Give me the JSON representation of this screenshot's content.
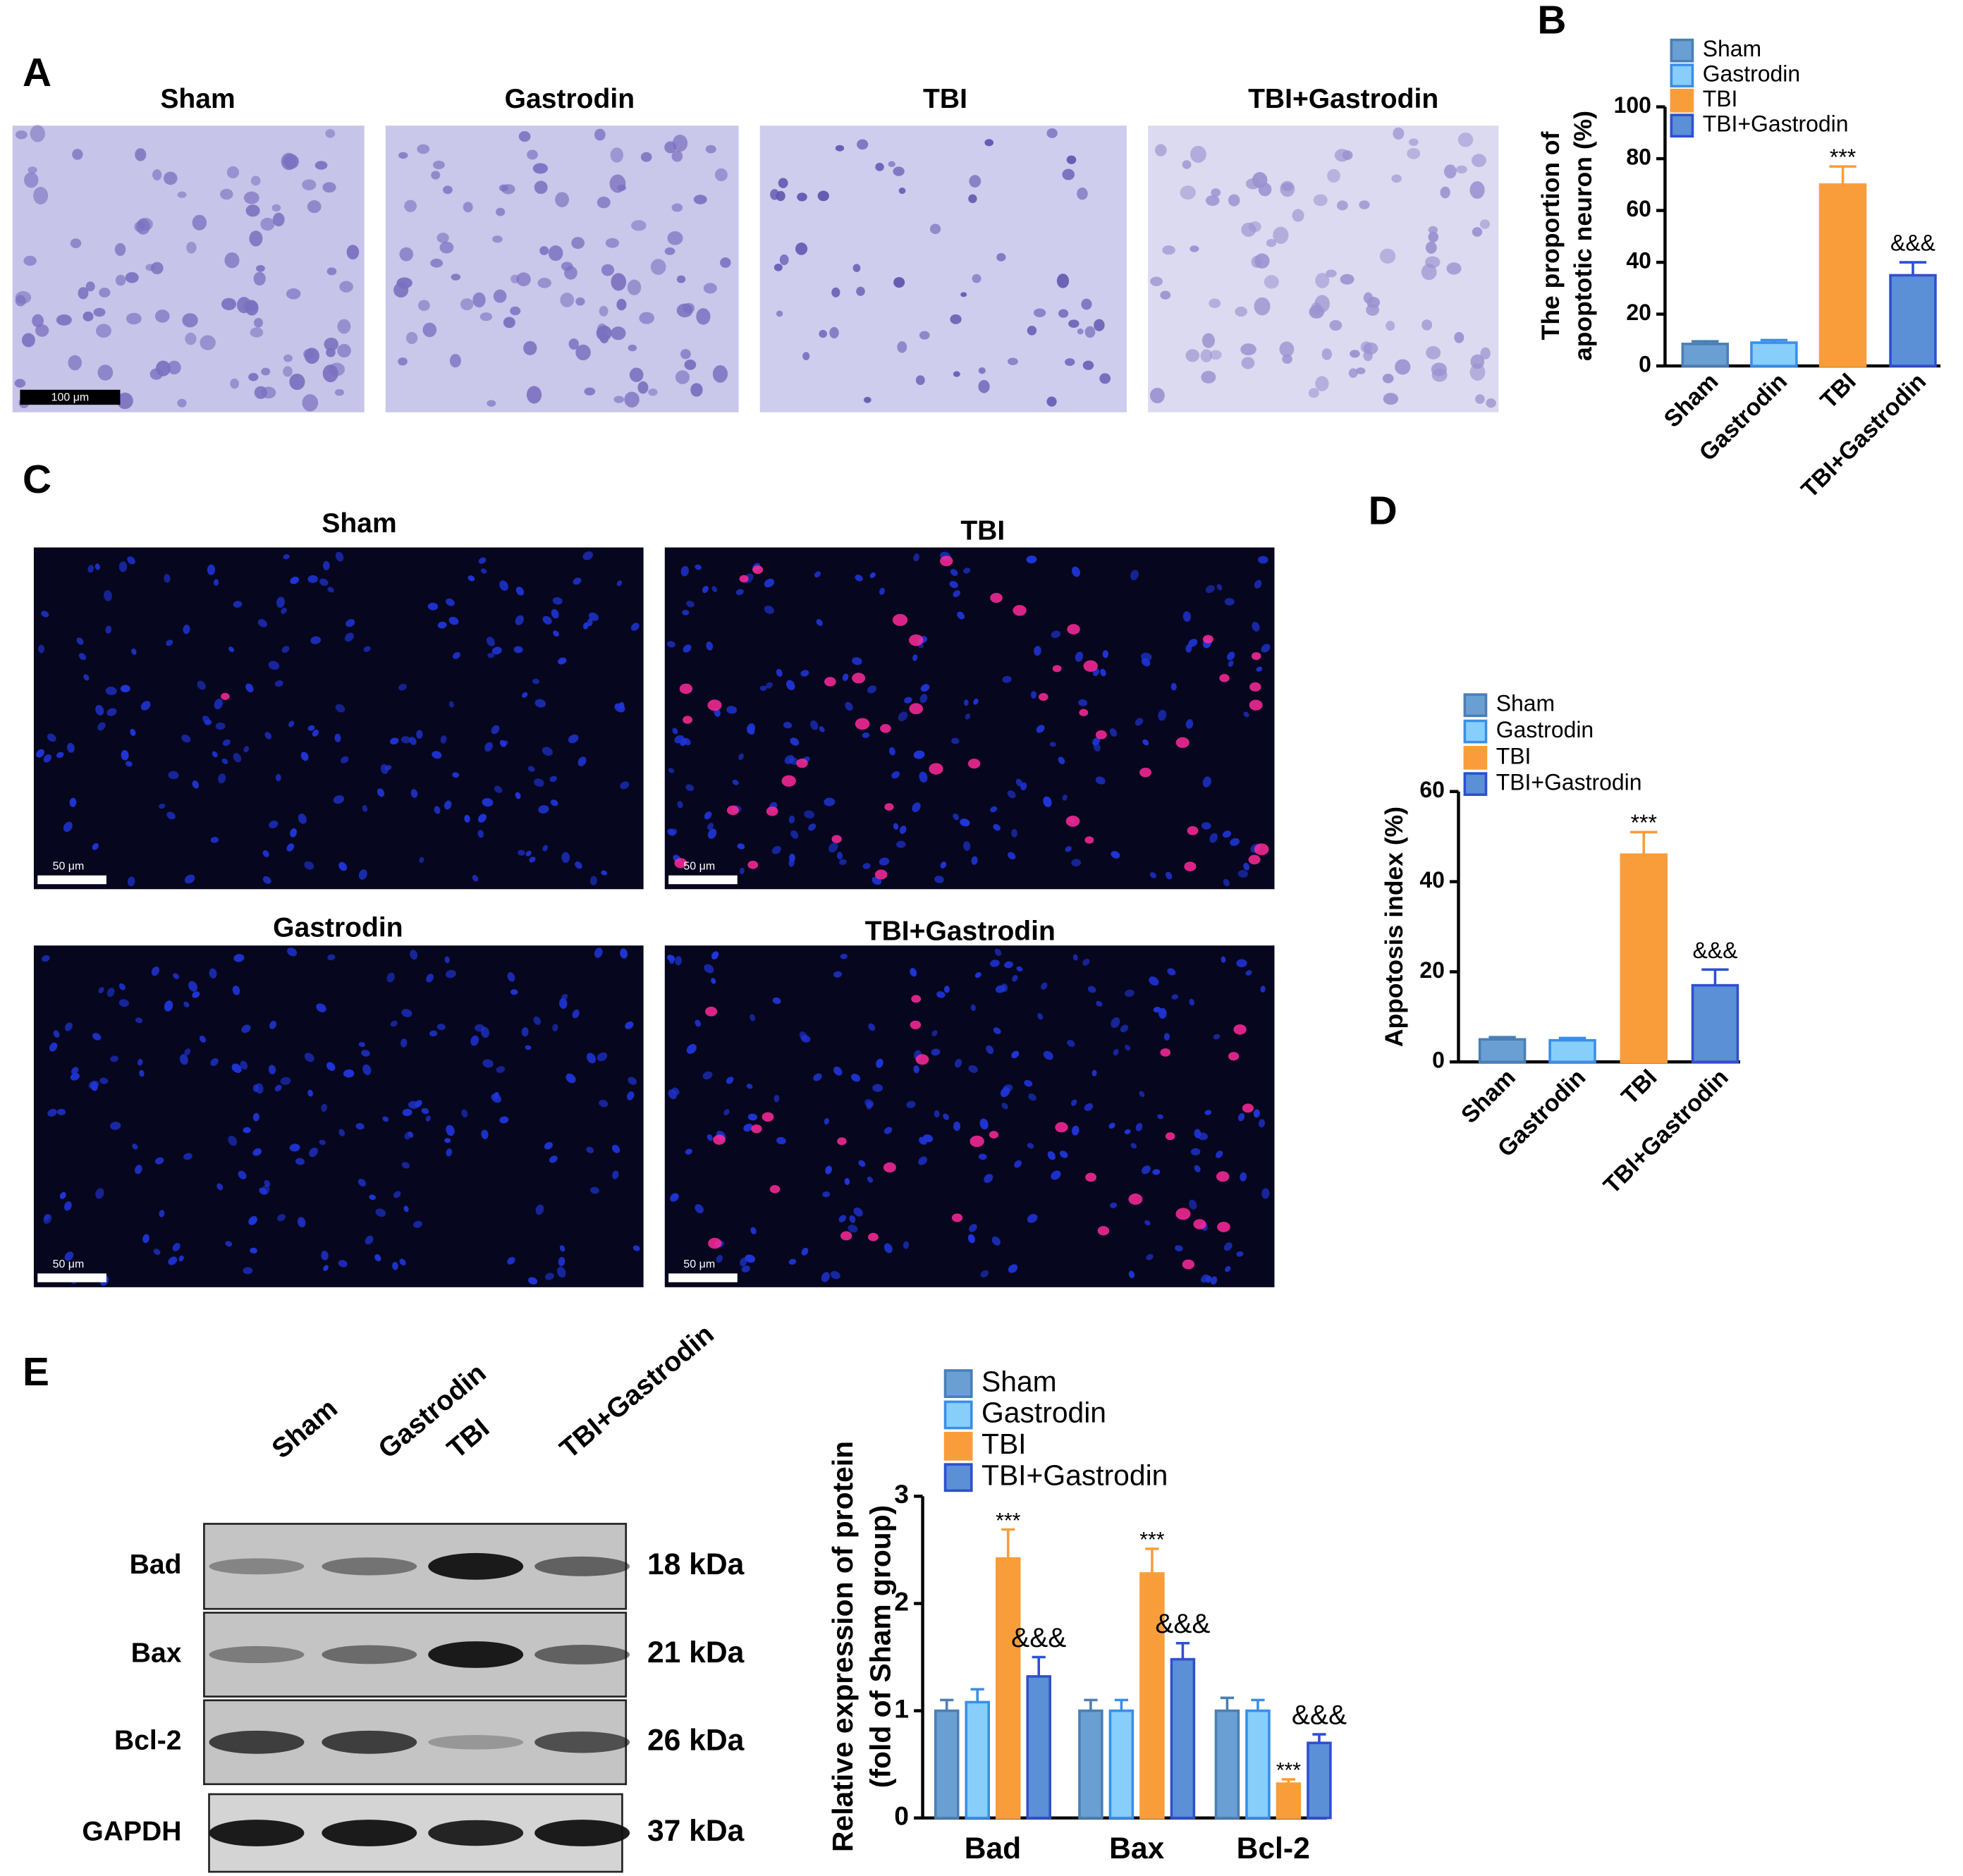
{
  "panel_labels": [
    "A",
    "B",
    "C",
    "D",
    "E"
  ],
  "panel_a": {
    "images": [
      {
        "title": "Sham",
        "scale_bar": "100 μm"
      },
      {
        "title": "Gastrodin"
      },
      {
        "title": "TBI"
      },
      {
        "title": "TBI+Gastrodin"
      }
    ]
  },
  "panel_c": {
    "images": [
      {
        "title": "Sham",
        "scale_bar": "50 μm"
      },
      {
        "title": "TBI",
        "scale_bar": "50 μm"
      },
      {
        "title": "Gastrodin",
        "scale_bar": "50 μm"
      },
      {
        "title": "TBI+Gastrodin",
        "scale_bar": "50 μm"
      }
    ]
  },
  "panel_e_blot": {
    "lanes": [
      "Sham",
      "Gastrodin",
      "TBI",
      "TBI+Gastrodin"
    ],
    "rows": [
      {
        "protein": "Bad",
        "size": "18 kDa"
      },
      {
        "protein": "Bax",
        "size": "21 kDa"
      },
      {
        "protein": "Bcl-2",
        "size": "26 kDa"
      },
      {
        "protein": "GAPDH",
        "size": "37 kDa"
      }
    ]
  },
  "chart_data": [
    {
      "type": "bar",
      "y_label": [
        "The proportion of",
        "apoptotic neuron (%)"
      ],
      "categories": [
        "Sham",
        "Gastrodin",
        "TBI",
        "TBI+Gastrodin"
      ],
      "values": [
        8.5,
        9,
        70,
        35
      ],
      "errors": [
        1,
        1,
        7,
        5
      ],
      "annotations": [
        null,
        null,
        "***",
        "&&&"
      ],
      "colors": [
        "#6a9fd4",
        "#87cefa",
        "#f99d3a",
        "#5b8fd6"
      ],
      "edgecolors": [
        "#4a7fb4",
        "#3a8ee6",
        "#f99d3a",
        "#2e4fd0"
      ],
      "ylim": [
        0,
        100
      ],
      "yticks": [
        0,
        20,
        40,
        60,
        80,
        100
      ]
    },
    {
      "type": "bar",
      "y_label": [
        "Appotosis index (%)"
      ],
      "categories": [
        "Sham",
        "Gastrodin",
        "TBI",
        "TBI+Gastrodin"
      ],
      "values": [
        5,
        4.8,
        46,
        17
      ],
      "errors": [
        0.5,
        0.5,
        5,
        3.5
      ],
      "annotations": [
        null,
        null,
        "***",
        "&&&"
      ],
      "colors": [
        "#6a9fd4",
        "#87cefa",
        "#f99d3a",
        "#5b8fd6"
      ],
      "edgecolors": [
        "#4a7fb4",
        "#3a8ee6",
        "#f99d3a",
        "#2e4fd0"
      ],
      "ylim": [
        0,
        60
      ],
      "yticks": [
        0,
        20,
        40,
        60
      ]
    },
    {
      "type": "grouped_bar",
      "y_label": [
        "Relative expression of protein",
        "(fold of Sham group)"
      ],
      "categories": [
        "Bad",
        "Bax",
        "Bcl-2"
      ],
      "series": [
        {
          "name": "Sham",
          "color": "#6a9fd4",
          "edgecolor": "#4a7fb4",
          "values": [
            1,
            1,
            1
          ],
          "errors": [
            0.1,
            0.1,
            0.12
          ],
          "annotations": [
            null,
            null,
            null
          ]
        },
        {
          "name": "Gastrodin",
          "color": "#87cefa",
          "edgecolor": "#3a8ee6",
          "values": [
            1.08,
            1,
            1
          ],
          "errors": [
            0.12,
            0.1,
            0.1
          ],
          "annotations": [
            null,
            null,
            null
          ]
        },
        {
          "name": "TBI",
          "color": "#f99d3a",
          "edgecolor": "#f99d3a",
          "values": [
            2.42,
            2.28,
            0.32
          ],
          "errors": [
            0.27,
            0.23,
            0.04
          ],
          "annotations": [
            "***",
            "***",
            "***"
          ]
        },
        {
          "name": "TBI+Gastrodin",
          "color": "#5b8fd6",
          "edgecolor": "#2e4fd0",
          "values": [
            1.32,
            1.48,
            0.7
          ],
          "errors": [
            0.18,
            0.15,
            0.08
          ],
          "annotations": [
            "&&&",
            "&&&",
            "&&&"
          ]
        }
      ],
      "ylim": [
        0,
        3
      ],
      "yticks": [
        0,
        1,
        2,
        3
      ]
    }
  ]
}
